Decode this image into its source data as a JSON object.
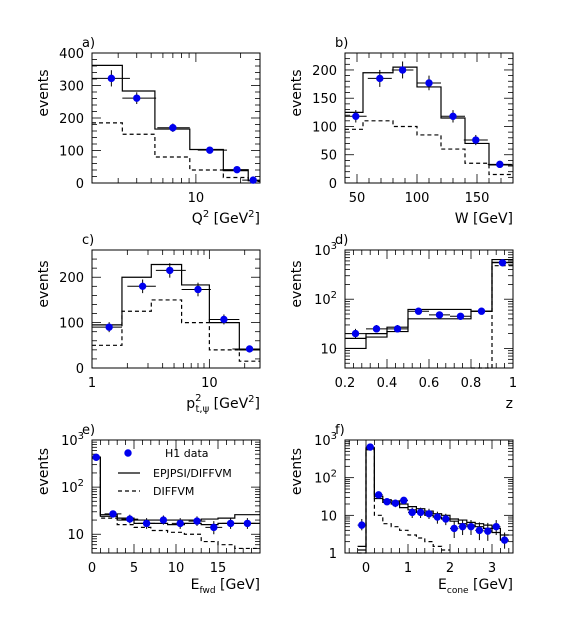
{
  "colors": {
    "data_points": "#0000ee",
    "line": "#000000"
  },
  "legend": {
    "data": "H1 data",
    "full_model": "EPJPSI/DIFFVM",
    "dashed_model": "DIFFVM"
  },
  "chart_data": [
    {
      "panel": "a)",
      "type": "line",
      "xlabel": "Q² [GeV²]",
      "ylabel": "events",
      "xscale": "log",
      "xlim": [
        2,
        27
      ],
      "ylim": [
        0,
        400
      ],
      "yticks": [
        0,
        100,
        200,
        300,
        400
      ],
      "xticks": [
        10
      ],
      "series": [
        {
          "name": "H1 data",
          "style": "points",
          "x": [
            2.7,
            4.0,
            7.0,
            12.4,
            18.9,
            24.3
          ],
          "y": [
            322,
            261,
            170,
            101,
            41,
            9
          ],
          "yerr": [
            25,
            18,
            13,
            9,
            5,
            3
          ],
          "xerr_lo": [
            0.7,
            0.8,
            1.5,
            2.1,
            3.8,
            3.8
          ],
          "xerr_hi": [
            0.9,
            1.4,
            2.1,
            3.8,
            3.8,
            2.7
          ]
        },
        {
          "name": "EPJPSI/DIFFVM",
          "style": "solid-step",
          "edges": [
            2,
            3.2,
            5.3,
            9.1,
            15.3,
            22.5,
            27
          ],
          "values": [
            362,
            283,
            166,
            103,
            38,
            7
          ]
        },
        {
          "name": "DIFFVM",
          "style": "dashed-step",
          "edges": [
            2,
            3.2,
            5.3,
            9.1,
            15.3,
            22.5,
            27
          ],
          "values": [
            185,
            150,
            80,
            40,
            17,
            5
          ]
        }
      ]
    },
    {
      "panel": "b)",
      "type": "line",
      "xlabel": "W [GeV]",
      "ylabel": "events",
      "xlim": [
        40,
        180
      ],
      "ylim": [
        0,
        230
      ],
      "yticks": [
        0,
        50,
        100,
        150,
        200
      ],
      "xticks": [
        50,
        100,
        150
      ],
      "series": [
        {
          "name": "H1 data",
          "style": "points",
          "x": [
            49,
            69,
            88,
            110,
            130,
            149,
            169
          ],
          "y": [
            118,
            185,
            200,
            177,
            118,
            76,
            33
          ],
          "yerr": [
            11,
            15,
            15,
            13,
            11,
            9,
            6
          ],
          "xerr": [
            9,
            10,
            9,
            10,
            10,
            10,
            10
          ]
        },
        {
          "name": "EPJPSI/DIFFVM",
          "style": "solid-step",
          "edges": [
            40,
            55,
            80,
            100,
            120,
            140,
            160,
            180
          ],
          "values": [
            125,
            195,
            205,
            170,
            115,
            70,
            32
          ]
        },
        {
          "name": "DIFFVM",
          "style": "dashed-step",
          "edges": [
            40,
            55,
            80,
            100,
            120,
            140,
            160,
            180
          ],
          "values": [
            95,
            110,
            100,
            85,
            60,
            35,
            15
          ]
        }
      ]
    },
    {
      "panel": "c)",
      "type": "line",
      "xlabel": "p²t,ψ [GeV²]",
      "ylabel": "events",
      "xscale": "log",
      "xlim": [
        1,
        27
      ],
      "ylim": [
        0,
        260
      ],
      "yticks": [
        0,
        100,
        200
      ],
      "xticks": [
        1,
        10
      ],
      "series": [
        {
          "name": "H1 data",
          "style": "points",
          "x": [
            1.4,
            2.7,
            4.6,
            8.0,
            13.3,
            22.0
          ],
          "y": [
            90,
            180,
            215,
            173,
            107,
            42
          ],
          "yerr": [
            11,
            15,
            16,
            15,
            11,
            6
          ],
          "xerr_lo": [
            0.4,
            0.7,
            1.1,
            2.2,
            3.4,
            6.3
          ],
          "xerr_hi": [
            0.4,
            0.8,
            1.7,
            2.3,
            4.7,
            5.0
          ]
        },
        {
          "name": "EPJPSI/DIFFVM",
          "style": "solid-step",
          "edges": [
            1,
            1.8,
            3.2,
            5.8,
            10.0,
            18.0,
            27
          ],
          "values": [
            95,
            200,
            228,
            183,
            100,
            40
          ]
        },
        {
          "name": "DIFFVM",
          "style": "dashed-step",
          "edges": [
            1,
            1.8,
            3.2,
            5.8,
            10.0,
            18.0,
            27
          ],
          "values": [
            50,
            125,
            150,
            100,
            40,
            15
          ]
        }
      ]
    },
    {
      "panel": "d)",
      "type": "line",
      "xlabel": "z",
      "ylabel": "events",
      "yscale": "log",
      "xlim": [
        0.2,
        1.0
      ],
      "ylim": [
        4,
        1000
      ],
      "yticks": [
        10,
        100,
        1000
      ],
      "yticklabels": [
        "10",
        "10²",
        "10³"
      ],
      "xticks": [
        0.2,
        0.4,
        0.6,
        0.8,
        1.0
      ],
      "xticklabels": [
        "0.2",
        "0.4",
        "0.6",
        "0.8",
        "1"
      ],
      "series": [
        {
          "name": "H1 data",
          "style": "points",
          "x": [
            0.25,
            0.35,
            0.45,
            0.55,
            0.65,
            0.75,
            0.85,
            0.95
          ],
          "y": [
            20,
            25,
            25,
            57,
            48,
            45,
            57,
            550
          ],
          "yerr_lo": [
            4,
            4,
            4,
            7,
            6,
            6,
            7,
            22
          ],
          "yerr_hi": [
            5,
            5,
            5,
            8,
            7,
            7,
            8,
            22
          ],
          "xerr": [
            0.05,
            0.05,
            0.05,
            0.05,
            0.05,
            0.05,
            0.05,
            0.05
          ]
        },
        {
          "name": "EPJPSI/DIFFVM",
          "style": "solid-step",
          "edges": [
            0.2,
            0.3,
            0.4,
            0.5,
            0.6,
            0.7,
            0.8,
            0.9,
            1.0
          ],
          "values": [
            10,
            17,
            22,
            40,
            40,
            40,
            57,
            560
          ]
        },
        {
          "name": "EPJPSI/DIFFVM",
          "style": "solid-step",
          "edges": [
            0.2,
            0.3,
            0.4,
            0.5,
            0.6,
            0.7,
            0.8,
            0.9,
            1.0
          ],
          "values": [
            16,
            20,
            27,
            62,
            62,
            62,
            57,
            640
          ]
        },
        {
          "name": "DIFFVM",
          "style": "dashed-step",
          "edges": [
            0.8,
            0.9,
            1.0
          ],
          "values": [
            4,
            480
          ]
        }
      ]
    },
    {
      "panel": "e)",
      "type": "line",
      "xlabel": "Efwd [GeV]",
      "ylabel": "events",
      "yscale": "log",
      "xlim": [
        0,
        20
      ],
      "ylim": [
        4,
        1000
      ],
      "yticks": [
        10,
        100,
        1000
      ],
      "yticklabels": [
        "10",
        "10²",
        "10³"
      ],
      "xticks": [
        0,
        5,
        10,
        15
      ],
      "series": [
        {
          "name": "H1 data",
          "style": "points",
          "x": [
            0.5,
            2.5,
            4.5,
            6.5,
            8.5,
            10.5,
            12.5,
            14.5,
            16.5,
            18.5
          ],
          "y": [
            430,
            27,
            21,
            17,
            20,
            17,
            19,
            14,
            17,
            17
          ],
          "yerr_lo": [
            20,
            4,
            4,
            4,
            4,
            4,
            4,
            4,
            4,
            4
          ],
          "yerr_hi": [
            20,
            5,
            5,
            5,
            5,
            5,
            5,
            5,
            5,
            5
          ],
          "xerr": [
            0.5,
            1,
            1,
            1,
            1,
            1,
            1,
            1,
            1,
            1
          ]
        },
        {
          "name": "EPJPSI/DIFFVM",
          "style": "solid-step",
          "edges": [
            0,
            1,
            3,
            5,
            7,
            9,
            11,
            13,
            15,
            17,
            19,
            20
          ],
          "values": [
            430,
            26,
            22,
            20,
            20,
            20,
            20,
            21,
            22,
            26,
            26
          ]
        },
        {
          "name": "EPJPSI/DIFFVM",
          "style": "solid-step",
          "edges": [
            0,
            1,
            3,
            5,
            7,
            9,
            11,
            13,
            15,
            17,
            19,
            20
          ],
          "values": [
            430,
            24,
            20,
            17,
            17,
            16,
            17,
            16,
            17,
            17,
            17
          ]
        },
        {
          "name": "DIFFVM",
          "style": "dashed-step",
          "edges": [
            0,
            1,
            3,
            5,
            7,
            9,
            11,
            13,
            15,
            17,
            19,
            20
          ],
          "values": [
            430,
            22,
            16,
            14,
            12,
            11,
            10,
            7,
            6,
            5,
            5
          ]
        }
      ]
    },
    {
      "panel": "f)",
      "type": "line",
      "xlabel": "Econe [GeV]",
      "ylabel": "events",
      "yscale": "log",
      "xlim": [
        -0.5,
        3.5
      ],
      "ylim": [
        1,
        1000
      ],
      "yticks": [
        1,
        10,
        100,
        1000
      ],
      "yticklabels": [
        "1",
        "10",
        "10²",
        "10³"
      ],
      "xticks": [
        0,
        1,
        2,
        3
      ],
      "series": [
        {
          "name": "H1 data",
          "style": "points",
          "x": [
            -0.1,
            0.1,
            0.3,
            0.5,
            0.7,
            0.9,
            1.1,
            1.3,
            1.5,
            1.7,
            1.9,
            2.1,
            2.3,
            2.5,
            2.7,
            2.9,
            3.1,
            3.3
          ],
          "y": [
            5.5,
            650,
            35,
            23,
            21,
            25,
            12,
            12,
            11,
            9,
            8,
            4.5,
            5,
            5,
            4,
            3.8,
            5,
            2.2
          ],
          "yerr_lo": [
            1.5,
            25,
            6,
            4.5,
            4.5,
            5,
            3.5,
            3.5,
            3,
            3,
            2.5,
            2,
            2,
            2,
            1.8,
            1.7,
            2,
            0.9
          ],
          "yerr_hi": [
            2.5,
            25,
            7,
            5,
            5,
            5,
            4,
            4,
            4,
            3.5,
            3,
            2.5,
            2.5,
            2.5,
            2.5,
            2.5,
            2.5,
            1.3
          ],
          "xerr": [
            0.1,
            0.1,
            0.1,
            0.1,
            0.1,
            0.1,
            0.1,
            0.1,
            0.1,
            0.1,
            0.1,
            0.1,
            0.1,
            0.1,
            0.1,
            0.1,
            0.1,
            0.1
          ]
        },
        {
          "name": "EPJPSI/DIFFVM",
          "style": "solid-step",
          "edges": [
            -0.2,
            0.0,
            0.2,
            0.4,
            0.6,
            0.8,
            1.0,
            1.2,
            1.4,
            1.6,
            1.8,
            2.0,
            2.2,
            2.4,
            2.6,
            2.8,
            3.0,
            3.2,
            3.4
          ],
          "values": [
            1.5,
            620,
            32,
            26,
            24,
            20,
            17,
            15,
            13,
            11,
            10,
            8,
            7.5,
            6.5,
            6,
            5.5,
            4.5,
            3
          ]
        },
        {
          "name": "EPJPSI/DIFFVM",
          "style": "solid-step",
          "edges": [
            -0.2,
            0.0,
            0.2,
            0.4,
            0.6,
            0.8,
            1.0,
            1.2,
            1.4,
            1.6,
            1.8,
            2.0,
            2.2,
            2.4,
            2.6,
            2.8,
            3.0,
            3.2,
            3.4
          ],
          "values": [
            1.2,
            580,
            28,
            22,
            20,
            16,
            14,
            12,
            10,
            9,
            8,
            7,
            6,
            5.5,
            5,
            4.5,
            3.5,
            2.2
          ]
        },
        {
          "name": "DIFFVM",
          "style": "dashed-step",
          "edges": [
            -0.2,
            0.0,
            0.2,
            0.4,
            0.6,
            0.8,
            1.0,
            1.2,
            1.4,
            1.6,
            1.8,
            2.0
          ],
          "values": [
            1,
            550,
            10,
            6,
            5,
            4,
            3,
            2.5,
            2,
            1.5,
            1.2
          ]
        }
      ]
    }
  ]
}
